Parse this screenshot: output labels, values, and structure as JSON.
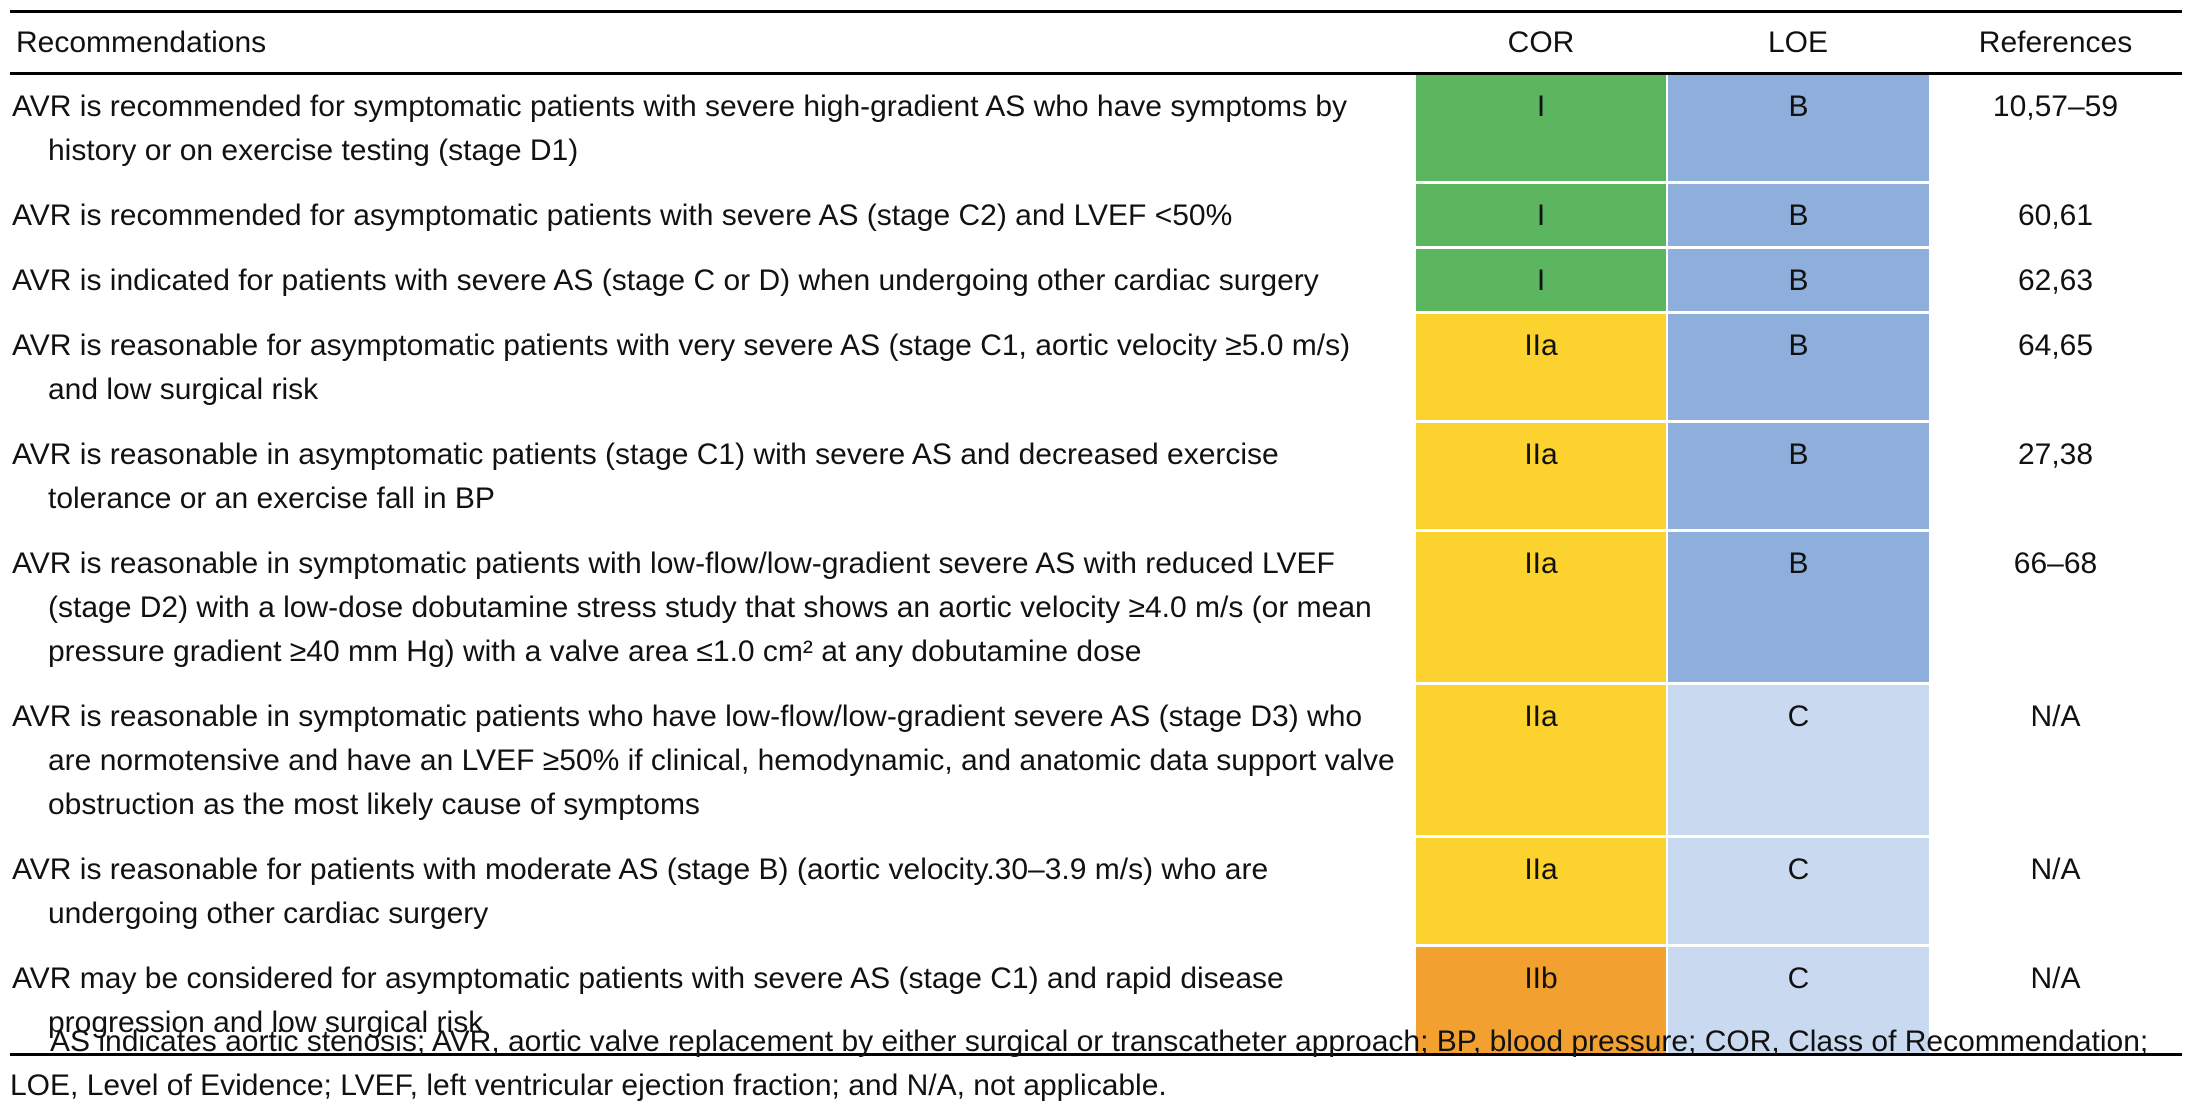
{
  "table": {
    "headers": {
      "recommendations": "Recommendations",
      "cor": "COR",
      "loe": "LOE",
      "references": "References"
    },
    "colors": {
      "cor_I": "#5cb660",
      "cor_IIa": "#fcd22e",
      "cor_IIb": "#f2a030",
      "loe_B": "#8eaedb",
      "loe_C": "#c9d9ef"
    },
    "rows": [
      {
        "rec": "AVR is recommended for symptomatic patients with severe high-gradient AS who have symptoms by history or on exercise testing (stage D1)",
        "cor": "I",
        "loe": "B",
        "ref": "10,57–59"
      },
      {
        "rec": "AVR is recommended for asymptomatic patients with severe AS (stage C2) and LVEF <50%",
        "cor": "I",
        "loe": "B",
        "ref": "60,61"
      },
      {
        "rec": "AVR is indicated for patients with severe AS (stage C or D) when undergoing other cardiac surgery",
        "cor": "I",
        "loe": "B",
        "ref": "62,63"
      },
      {
        "rec": "AVR is reasonable for asymptomatic patients with very severe AS (stage C1, aortic velocity ≥5.0 m/s) and low surgical risk",
        "cor": "IIa",
        "loe": "B",
        "ref": "64,65"
      },
      {
        "rec": "AVR is reasonable in asymptomatic patients (stage C1) with severe AS and decreased exercise tolerance or an exercise fall in BP",
        "cor": "IIa",
        "loe": "B",
        "ref": "27,38"
      },
      {
        "rec": "AVR is reasonable in symptomatic patients with low-flow/low-gradient severe AS with reduced LVEF (stage D2) with a low-dose dobutamine stress study that shows an aortic velocity ≥4.0 m/s (or mean pressure gradient ≥40 mm Hg) with a valve area ≤1.0 cm² at any dobutamine dose",
        "cor": "IIa",
        "loe": "B",
        "ref": "66–68"
      },
      {
        "rec": "AVR is reasonable in symptomatic patients who have low-flow/low-gradient severe AS (stage D3) who are normotensive and have an LVEF ≥50% if clinical, hemodynamic, and anatomic data support valve obstruction as the most likely cause of symptoms",
        "cor": "IIa",
        "loe": "C",
        "ref": "N/A"
      },
      {
        "rec": "AVR is reasonable for patients with moderate AS (stage B) (aortic velocity.30–3.9 m/s) who are undergoing other cardiac surgery",
        "cor": "IIa",
        "loe": "C",
        "ref": "N/A"
      },
      {
        "rec": "AVR may be considered for asymptomatic patients with severe AS (stage C1) and rapid disease progression and low surgical risk",
        "cor": "IIb",
        "loe": "C",
        "ref": "N/A"
      }
    ]
  },
  "footnote": "AS indicates aortic stenosis; AVR, aortic valve replacement by either surgical or transcatheter approach; BP, blood pressure; COR, Class of Recommendation; LOE, Level of Evidence; LVEF, left ventricular ejection fraction; and N/A, not applicable."
}
